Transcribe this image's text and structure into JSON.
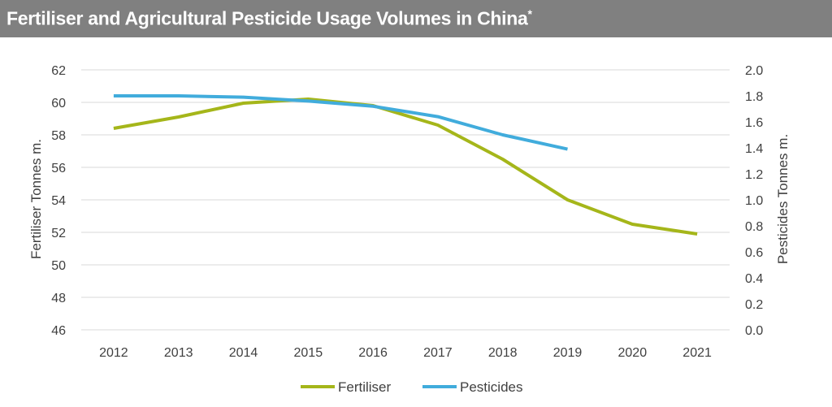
{
  "chart_data": {
    "type": "line",
    "title": "Fertiliser and Agricultural Pesticide Usage Volumes in China",
    "title_mark": "*",
    "categories": [
      "2012",
      "2013",
      "2014",
      "2015",
      "2016",
      "2017",
      "2018",
      "2019",
      "2020",
      "2021"
    ],
    "series": [
      {
        "name": "Fertiliser",
        "axis": "left",
        "color": "#a5b61a",
        "values": [
          58.4,
          59.1,
          59.95,
          60.2,
          59.8,
          58.6,
          56.5,
          54.0,
          52.5,
          51.9
        ]
      },
      {
        "name": "Pesticides",
        "axis": "right",
        "color": "#41acdc",
        "values": [
          1.8,
          1.8,
          1.79,
          1.76,
          1.72,
          1.64,
          1.5,
          1.39,
          null,
          null
        ]
      }
    ],
    "ylabel": "Fertiliser Tonnes m.",
    "ylim": [
      46,
      62
    ],
    "yticks": [
      "46",
      "48",
      "50",
      "52",
      "54",
      "56",
      "58",
      "60",
      "62"
    ],
    "y2label": "Pesticides Tonnes m.",
    "y2lim": [
      0.0,
      2.0
    ],
    "y2ticks": [
      "0.0",
      "0.2",
      "0.4",
      "0.6",
      "0.8",
      "1.0",
      "1.2",
      "1.4",
      "1.6",
      "1.8",
      "2.0"
    ],
    "grid": true,
    "legend": "bottom"
  }
}
